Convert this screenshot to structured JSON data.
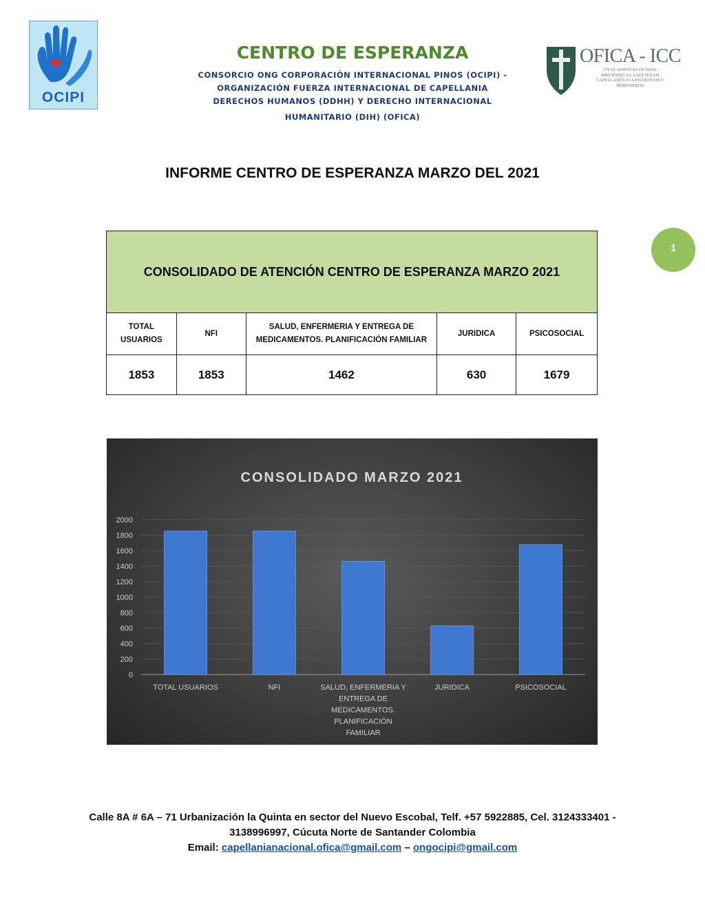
{
  "header": {
    "left_logo_text": "OCIPI",
    "title": "CENTRO DE ESPERANZA",
    "subtitle_lines": [
      "CONSORCIO ONG CORPORACIÓN INTERNACIONAL PINOS (OCIPI) -",
      "ORGANIZACIÓN FUERZA INTERNACIONAL DE CAPELLANIA",
      "DERECHOS HUMANOS (DDHH) Y DERECHO INTERNACIONAL",
      "HUMANITARIO (DIH) (OFICA)"
    ],
    "right_logo_text": "OFICA - ICC",
    "right_logo_tagline": "EN EL SERVICIO DE DIOS SIRVIENDO A LA SOCIEDAD CAPELLANES ECLESIÁSTICOS Y MISIONEROS"
  },
  "report_title": "INFORME CENTRO DE ESPERANZA MARZO DEL 2021",
  "page_number": "1",
  "table": {
    "title": "CONSOLIDADO DE ATENCIÓN CENTRO DE ESPERANZA MARZO 2021",
    "headers": [
      "TOTAL USUARIOS",
      "NFI",
      "SALUD, ENFERMERIA Y ENTREGA DE MEDICAMENTOS. PLANIFICACIÓN FAMILIAR",
      "JURIDICA",
      "PSICOSOCIAL"
    ],
    "values": [
      "1853",
      "1853",
      "1462",
      "630",
      "1679"
    ]
  },
  "chart_data": {
    "type": "bar",
    "title": "CONSOLIDADO MARZO 2021",
    "categories": [
      "TOTAL USUARIOS",
      "NFI",
      "SALUD, ENFERMERIA Y ENTREGA DE MEDICAMENTOS. PLANIFICACIÓN FAMILIAR",
      "JURIDICA",
      "PSICOSOCIAL"
    ],
    "category_label_lines": [
      [
        "TOTAL USUARIOS"
      ],
      [
        "NFI"
      ],
      [
        "SALUD, ENFERMERIA Y",
        "ENTREGA DE",
        "MEDICAMENTOS.",
        "PLANIFICACIÓN",
        "FAMILIAR"
      ],
      [
        "JURIDICA"
      ],
      [
        "PSICOSOCIAL"
      ]
    ],
    "values": [
      1853,
      1853,
      1462,
      630,
      1679
    ],
    "ylim": [
      0,
      2000
    ],
    "yticks": [
      0,
      200,
      400,
      600,
      800,
      1000,
      1200,
      1400,
      1600,
      1800,
      2000
    ],
    "grid": true,
    "legend": "none",
    "bar_color": "#3f78d1",
    "xlabel": "",
    "ylabel": ""
  },
  "footer": {
    "address_line1": "Calle 8A # 6A – 71 Urbanización la Quinta en sector del Nuevo Escobal, Telf.  +57 5922885, Cel. 3124333401 -",
    "address_line2": "3138996997, Cúcuta Norte de Santander Colombia",
    "email_label": "Email:",
    "email1": "capellanianacional.ofica@gmail.com",
    "email_sep": "–",
    "email2": "ongocipi@gmail.com"
  },
  "colors": {
    "title_green": "#4d8b2e",
    "subtitle_blue": "#1f3a7a",
    "table_header_green": "#c4dca0",
    "badge_green": "#93c15b"
  }
}
